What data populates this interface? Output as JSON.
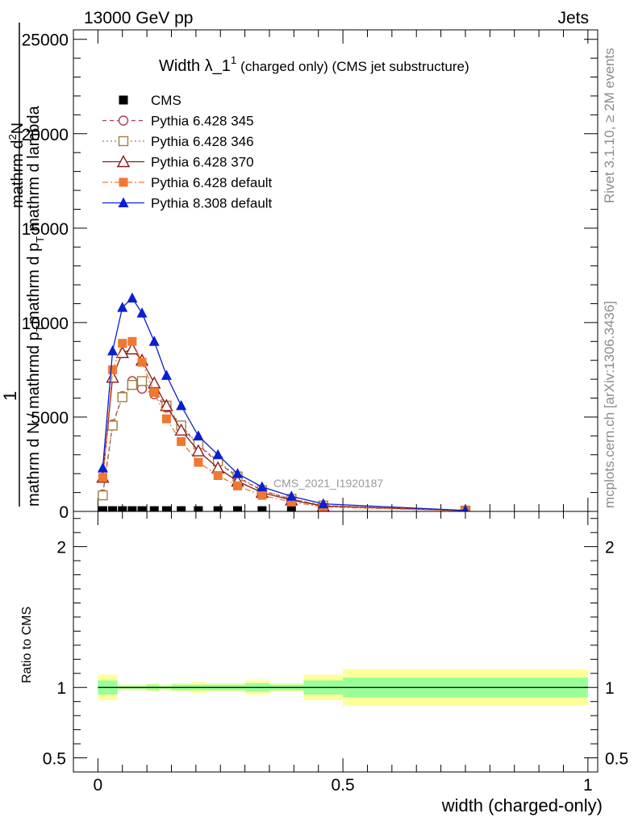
{
  "header": {
    "left": "13000 GeV pp",
    "right": "Jets"
  },
  "side_labels": {
    "rivet": "Rivet 3.1.10, ≥ 2M events",
    "mcplots": "mcplots.cern.ch [arXiv:1306.3436]"
  },
  "chart_data": [
    {
      "type": "line",
      "title_main": "Width λ_1",
      "title_sup": "1",
      "title_rest": "(charged only) (CMS jet substructure)",
      "watermark": "CMS_2021_I1920187",
      "ylabel": {
        "numerator": "1",
        "denominator": "mathrm d N / mathrmd p_T mathrm d p_T mathrm d lambda",
        "d_frag": "mathrm d",
        "n_sup": "2",
        "n_frag": "N",
        "mid_frag": "mathrm d p",
        "t_sub": "T",
        "tail_frag": "mathrm d lambda",
        "den_lead": "mathrm d N / mathrmd p",
        "den_sub": "T"
      },
      "xlim": [
        -0.05,
        1.02
      ],
      "ylim": [
        0,
        25500
      ],
      "y_ticks": [
        0,
        5000,
        10000,
        15000,
        20000,
        25000
      ],
      "y_tick_labels": [
        "0",
        "5000",
        "10000",
        "15000",
        "20000",
        "25000"
      ],
      "legend_position": "top-left",
      "series": [
        {
          "name": "CMS",
          "color": "#000000",
          "marker": "square",
          "x": [
            0.01,
            0.03,
            0.05,
            0.07,
            0.09,
            0.115,
            0.14,
            0.17,
            0.205,
            0.245,
            0.285,
            0.335,
            0.395,
            0.46,
            0.75
          ],
          "values": [
            40,
            40,
            40,
            40,
            40,
            40,
            40,
            40,
            40,
            40,
            40,
            40,
            40,
            40,
            10
          ]
        },
        {
          "name": "Pythia 6.428 345",
          "color": "#b03a50",
          "marker": "open-circle",
          "dash": "5,4",
          "x": [
            0.01,
            0.03,
            0.05,
            0.07,
            0.09,
            0.115,
            0.14,
            0.17,
            0.205,
            0.245,
            0.285,
            0.335,
            0.395,
            0.46,
            0.75
          ],
          "values": [
            900,
            4600,
            6100,
            6900,
            6500,
            6200,
            5500,
            4500,
            3500,
            2600,
            1800,
            1100,
            650,
            300,
            40
          ]
        },
        {
          "name": "Pythia 6.428 346",
          "color": "#a08040",
          "marker": "open-square",
          "dash": "2,3",
          "x": [
            0.01,
            0.03,
            0.05,
            0.07,
            0.09,
            0.115,
            0.14,
            0.17,
            0.205,
            0.245,
            0.285,
            0.335,
            0.395,
            0.46,
            0.75
          ],
          "values": [
            850,
            4550,
            6050,
            6700,
            6900,
            6400,
            5600,
            4550,
            3550,
            2650,
            1850,
            1120,
            660,
            310,
            40
          ]
        },
        {
          "name": "Pythia 6.428 370",
          "color": "#8b1a1a",
          "marker": "open-triangle",
          "dash": "",
          "x": [
            0.01,
            0.03,
            0.05,
            0.07,
            0.09,
            0.115,
            0.14,
            0.17,
            0.205,
            0.245,
            0.285,
            0.335,
            0.395,
            0.46,
            0.75
          ],
          "values": [
            1800,
            7100,
            8400,
            8600,
            8000,
            6800,
            5600,
            4300,
            3200,
            2300,
            1600,
            1000,
            600,
            280,
            40
          ]
        },
        {
          "name": "Pythia 6.428 default",
          "color": "#f07830",
          "marker": "filled-square",
          "dash": "7,3,2,3",
          "x": [
            0.01,
            0.03,
            0.05,
            0.07,
            0.09,
            0.115,
            0.14,
            0.17,
            0.205,
            0.245,
            0.285,
            0.335,
            0.395,
            0.46,
            0.75
          ],
          "values": [
            1800,
            7500,
            8900,
            9000,
            7900,
            6300,
            4900,
            3700,
            2600,
            1900,
            1350,
            850,
            500,
            230,
            30
          ]
        },
        {
          "name": "Pythia 8.308 default",
          "color": "#0a1ed2",
          "marker": "filled-triangle",
          "dash": "",
          "x": [
            0.01,
            0.03,
            0.05,
            0.07,
            0.09,
            0.115,
            0.14,
            0.17,
            0.205,
            0.245,
            0.285,
            0.335,
            0.395,
            0.46,
            0.75
          ],
          "values": [
            2300,
            8500,
            10800,
            11300,
            10500,
            9000,
            7200,
            5600,
            4000,
            3000,
            2000,
            1300,
            800,
            400,
            50
          ]
        }
      ]
    },
    {
      "type": "area",
      "ylabel": "Ratio to CMS",
      "xlabel": "width (charged-only)",
      "xlim": [
        -0.05,
        1.02
      ],
      "ylim": [
        0.4,
        2.25
      ],
      "y_ticks": [
        0.5,
        1,
        2
      ],
      "y_tick_labels": [
        "0.5",
        "1",
        "2"
      ],
      "x_ticks": [
        0,
        0.5,
        1
      ],
      "x_tick_labels": [
        "0",
        "0.5",
        "1"
      ],
      "reference_line": 1,
      "bin_edges": [
        0.0,
        0.04,
        0.06,
        0.08,
        0.1,
        0.125,
        0.15,
        0.19,
        0.22,
        0.27,
        0.3,
        0.35,
        0.42,
        0.5,
        1.0
      ],
      "band_yellow": {
        "color": "#ffff99",
        "lo": [
          0.91,
          0.98,
          0.98,
          0.98,
          0.97,
          0.98,
          0.97,
          0.96,
          0.97,
          0.97,
          0.95,
          0.97,
          0.91,
          0.87
        ],
        "hi": [
          1.09,
          1.02,
          1.02,
          1.02,
          1.03,
          1.02,
          1.03,
          1.04,
          1.03,
          1.03,
          1.05,
          1.03,
          1.09,
          1.13
        ]
      },
      "band_green": {
        "color": "#99ff99",
        "lo": [
          0.95,
          0.99,
          0.99,
          0.99,
          0.98,
          0.99,
          0.98,
          0.98,
          0.98,
          0.98,
          0.97,
          0.98,
          0.95,
          0.93
        ],
        "hi": [
          1.05,
          1.01,
          1.01,
          1.01,
          1.02,
          1.01,
          1.02,
          1.02,
          1.02,
          1.02,
          1.03,
          1.02,
          1.05,
          1.07
        ]
      }
    }
  ]
}
